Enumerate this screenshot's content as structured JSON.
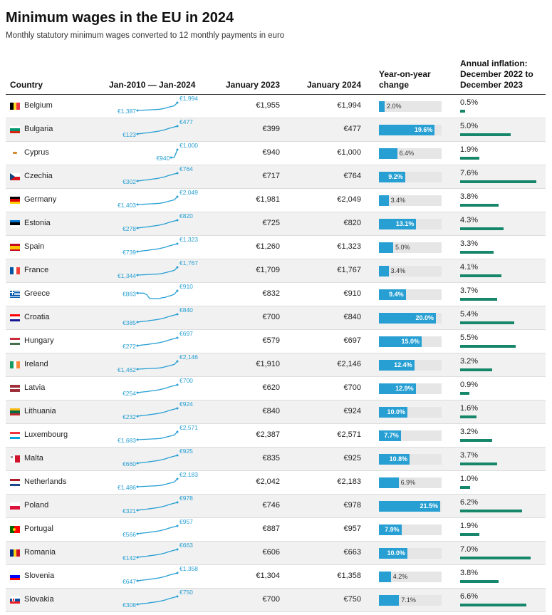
{
  "title": "Minimum wages in the EU in 2024",
  "subtitle": "Monthly statutory minimum wages converted to 12 monthly payments in euro",
  "columns": {
    "country": "Country",
    "trend": "Jan-2010 — Jan-2024",
    "jan2023": "January 2023",
    "jan2024": "January 2024",
    "yoy": "Year-on-year change",
    "inflation": "Annual inflation: December 2022 to December 2023"
  },
  "colors": {
    "sparkline": "#279fd3",
    "yoy_bar": "#279fd3",
    "yoy_bar_bg": "#e6e6e6",
    "inflation_bar": "#17876b",
    "row_shade": "#f1f1f1"
  },
  "chart_data": {
    "type": "table",
    "rows": [
      {
        "country": "Belgium",
        "flag": "belgium",
        "start": "€1,387",
        "end": "€1,994",
        "jan2023": "€1,955",
        "jan2024": "€1,994",
        "yoy_label": "2.0%",
        "yoy": 2.0,
        "inflation_label": "0.5%",
        "inflation": 0.5
      },
      {
        "country": "Bulgaria",
        "flag": "bulgaria",
        "start": "€123",
        "end": "€477",
        "jan2023": "€399",
        "jan2024": "€477",
        "yoy_label": "19.6%",
        "yoy": 19.6,
        "inflation_label": "5.0%",
        "inflation": 5.0
      },
      {
        "country": "Cyprus",
        "flag": "cyprus",
        "start": "€940",
        "end": "€1,000",
        "jan2023": "€940",
        "jan2024": "€1,000",
        "yoy_label": "6.4%",
        "yoy": 6.4,
        "inflation_label": "1.9%",
        "inflation": 1.9
      },
      {
        "country": "Czechia",
        "flag": "czechia",
        "start": "€302",
        "end": "€764",
        "jan2023": "€717",
        "jan2024": "€764",
        "yoy_label": "9.2%",
        "yoy": 9.2,
        "inflation_label": "7.6%",
        "inflation": 7.6
      },
      {
        "country": "Germany",
        "flag": "germany",
        "start": "€1,403",
        "end": "€2,049",
        "jan2023": "€1,981",
        "jan2024": "€2,049",
        "yoy_label": "3.4%",
        "yoy": 3.4,
        "inflation_label": "3.8%",
        "inflation": 3.8
      },
      {
        "country": "Estonia",
        "flag": "estonia",
        "start": "€278",
        "end": "€820",
        "jan2023": "€725",
        "jan2024": "€820",
        "yoy_label": "13.1%",
        "yoy": 13.1,
        "inflation_label": "4.3%",
        "inflation": 4.3
      },
      {
        "country": "Spain",
        "flag": "spain",
        "start": "€739",
        "end": "€1,323",
        "jan2023": "€1,260",
        "jan2024": "€1,323",
        "yoy_label": "5.0%",
        "yoy": 5.0,
        "inflation_label": "3.3%",
        "inflation": 3.3
      },
      {
        "country": "France",
        "flag": "france",
        "start": "€1,344",
        "end": "€1,767",
        "jan2023": "€1,709",
        "jan2024": "€1,767",
        "yoy_label": "3.4%",
        "yoy": 3.4,
        "inflation_label": "4.1%",
        "inflation": 4.1
      },
      {
        "country": "Greece",
        "flag": "greece",
        "start": "€863",
        "end": "€910",
        "jan2023": "€832",
        "jan2024": "€910",
        "yoy_label": "9.4%",
        "yoy": 9.4,
        "inflation_label": "3.7%",
        "inflation": 3.7
      },
      {
        "country": "Croatia",
        "flag": "croatia",
        "start": "€385",
        "end": "€840",
        "jan2023": "€700",
        "jan2024": "€840",
        "yoy_label": "20.0%",
        "yoy": 20.0,
        "inflation_label": "5.4%",
        "inflation": 5.4
      },
      {
        "country": "Hungary",
        "flag": "hungary",
        "start": "€272",
        "end": "€697",
        "jan2023": "€579",
        "jan2024": "€697",
        "yoy_label": "15.0%",
        "yoy": 15.0,
        "inflation_label": "5.5%",
        "inflation": 5.5
      },
      {
        "country": "Ireland",
        "flag": "ireland",
        "start": "€1,462",
        "end": "€2,146",
        "jan2023": "€1,910",
        "jan2024": "€2,146",
        "yoy_label": "12.4%",
        "yoy": 12.4,
        "inflation_label": "3.2%",
        "inflation": 3.2
      },
      {
        "country": "Latvia",
        "flag": "latvia",
        "start": "€254",
        "end": "€700",
        "jan2023": "€620",
        "jan2024": "€700",
        "yoy_label": "12.9%",
        "yoy": 12.9,
        "inflation_label": "0.9%",
        "inflation": 0.9
      },
      {
        "country": "Lithuania",
        "flag": "lithuania",
        "start": "€232",
        "end": "€924",
        "jan2023": "€840",
        "jan2024": "€924",
        "yoy_label": "10.0%",
        "yoy": 10.0,
        "inflation_label": "1.6%",
        "inflation": 1.6
      },
      {
        "country": "Luxembourg",
        "flag": "luxembourg",
        "start": "€1,683",
        "end": "€2,571",
        "jan2023": "€2,387",
        "jan2024": "€2,571",
        "yoy_label": "7.7%",
        "yoy": 7.7,
        "inflation_label": "3.2%",
        "inflation": 3.2
      },
      {
        "country": "Malta",
        "flag": "malta",
        "start": "€660",
        "end": "€925",
        "jan2023": "€835",
        "jan2024": "€925",
        "yoy_label": "10.8%",
        "yoy": 10.8,
        "inflation_label": "3.7%",
        "inflation": 3.7
      },
      {
        "country": "Netherlands",
        "flag": "netherlands",
        "start": "€1,486",
        "end": "€2,183",
        "jan2023": "€2,042",
        "jan2024": "€2,183",
        "yoy_label": "6.9%",
        "yoy": 6.9,
        "inflation_label": "1.0%",
        "inflation": 1.0
      },
      {
        "country": "Poland",
        "flag": "poland",
        "start": "€321",
        "end": "€978",
        "jan2023": "€746",
        "jan2024": "€978",
        "yoy_label": "21.5%",
        "yoy": 21.5,
        "inflation_label": "6.2%",
        "inflation": 6.2
      },
      {
        "country": "Portugal",
        "flag": "portugal",
        "start": "€566",
        "end": "€957",
        "jan2023": "€887",
        "jan2024": "€957",
        "yoy_label": "7.9%",
        "yoy": 7.9,
        "inflation_label": "1.9%",
        "inflation": 1.9
      },
      {
        "country": "Romania",
        "flag": "romania",
        "start": "€142",
        "end": "€663",
        "jan2023": "€606",
        "jan2024": "€663",
        "yoy_label": "10.0%",
        "yoy": 10.0,
        "inflation_label": "7.0%",
        "inflation": 7.0
      },
      {
        "country": "Slovenia",
        "flag": "slovenia",
        "start": "€647",
        "end": "€1,358",
        "jan2023": "€1,304",
        "jan2024": "€1,358",
        "yoy_label": "4.2%",
        "yoy": 4.2,
        "inflation_label": "3.8%",
        "inflation": 3.8
      },
      {
        "country": "Slovakia",
        "flag": "slovakia",
        "start": "€308",
        "end": "€750",
        "jan2023": "€700",
        "jan2024": "€750",
        "yoy_label": "7.1%",
        "yoy": 7.1,
        "inflation_label": "6.6%",
        "inflation": 6.6
      }
    ]
  }
}
